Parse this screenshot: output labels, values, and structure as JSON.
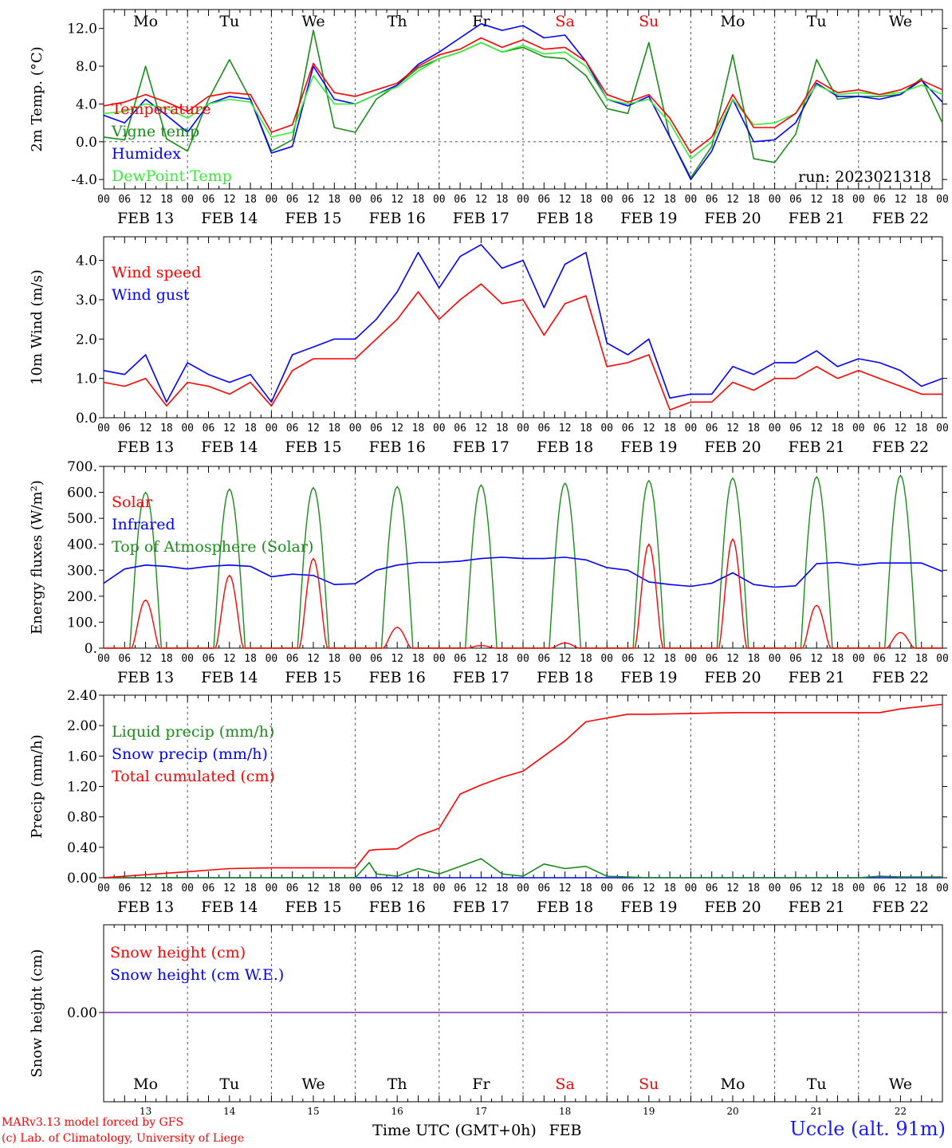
{
  "colors": {
    "red": "#ff0000",
    "green": "#1a8c1a",
    "blue": "#0000ff",
    "lightgreen": "#33ee33",
    "purple": "#7a2cb0",
    "black": "#000000"
  },
  "days": [
    "Mo",
    "Tu",
    "We",
    "Th",
    "Fr",
    "Sa",
    "Su",
    "Mo",
    "Tu",
    "We"
  ],
  "weekend_days": [
    5,
    6
  ],
  "date_labels": [
    "FEB 13",
    "FEB 14",
    "FEB 15",
    "FEB 16",
    "FEB 17",
    "FEB 18",
    "FEB 19",
    "FEB 20",
    "FEB 21",
    "FEB 22"
  ],
  "hour_ticks": [
    "00",
    "06",
    "12",
    "18"
  ],
  "last_tick": "00",
  "bottom_day_numbers": [
    "13",
    "14",
    "15",
    "16",
    "17",
    "18",
    "19",
    "20",
    "21",
    "22"
  ],
  "bottom_axis_label": "Time UTC (GMT+0h)",
  "bottom_month": "FEB",
  "footer": {
    "line1": "MARv3.13 model forced by GFS",
    "line2": "(c) Lab. of Climatology, University of Liege"
  },
  "station": "Uccle (alt. 91m)",
  "run_label": "run: 2023021318",
  "chart_data": [
    {
      "type": "line",
      "ylabel": "2m Temp. (°C)",
      "ylim": [
        -5.0,
        14.0
      ],
      "yticks": [
        -4,
        0,
        4,
        8,
        12
      ],
      "ytick_labels": [
        "-4.0",
        "0.0",
        "4.0",
        "8.0",
        "12.0"
      ],
      "zero_line": true,
      "x_hours": [
        0,
        6,
        12,
        18,
        24,
        30,
        36,
        42,
        48,
        54,
        60,
        66,
        72,
        78,
        84,
        90,
        96,
        102,
        108,
        114,
        120,
        126,
        132,
        138,
        144,
        150,
        156,
        162,
        168,
        174,
        180,
        186,
        192,
        198,
        204,
        210,
        216,
        222,
        228,
        234,
        240
      ],
      "series": [
        {
          "name": "Temperature",
          "color": "red",
          "values": [
            3.8,
            4.2,
            5.0,
            4.2,
            3.2,
            4.8,
            5.2,
            5.0,
            1.0,
            1.8,
            8.3,
            5.2,
            4.8,
            5.5,
            6.2,
            8.0,
            9.2,
            9.8,
            11.0,
            10.0,
            10.8,
            9.8,
            10.0,
            8.5,
            5.0,
            4.2,
            5.0,
            2.5,
            -1.2,
            0.5,
            5.0,
            1.5,
            1.5,
            3.0,
            6.5,
            5.2,
            5.5,
            5.0,
            5.5,
            6.5,
            5.5
          ]
        },
        {
          "name": "Vigne temp",
          "color": "green",
          "values": [
            0.5,
            0.2,
            8.0,
            0.3,
            -1.0,
            4.5,
            8.7,
            4.5,
            -1.0,
            0.2,
            11.8,
            1.5,
            1.0,
            4.5,
            6.0,
            7.8,
            8.8,
            9.5,
            10.5,
            9.5,
            10.0,
            9.0,
            8.8,
            7.0,
            3.5,
            3.0,
            10.5,
            0.5,
            -3.8,
            -0.5,
            9.2,
            -1.8,
            -2.2,
            0.8,
            8.7,
            4.5,
            4.8,
            4.8,
            5.0,
            6.7,
            2.0
          ]
        },
        {
          "name": "Humidex",
          "color": "blue",
          "values": [
            2.8,
            2.0,
            4.5,
            2.8,
            1.0,
            4.0,
            4.8,
            4.5,
            -1.2,
            -0.5,
            8.0,
            4.5,
            4.0,
            5.0,
            6.0,
            8.2,
            9.5,
            11.0,
            12.5,
            11.8,
            12.3,
            11.0,
            11.3,
            8.5,
            4.5,
            3.8,
            4.8,
            0.5,
            -4.0,
            -1.0,
            4.5,
            0.0,
            0.2,
            2.0,
            6.2,
            4.8,
            4.8,
            4.5,
            5.0,
            6.5,
            4.2
          ]
        },
        {
          "name": "DewPoint Temp",
          "color": "lightgreen",
          "values": [
            3.0,
            3.2,
            4.0,
            3.5,
            2.5,
            4.0,
            4.5,
            4.2,
            0.5,
            1.0,
            7.0,
            4.0,
            4.0,
            5.0,
            5.8,
            7.5,
            8.8,
            9.5,
            10.5,
            9.5,
            10.2,
            9.3,
            9.5,
            8.0,
            4.5,
            4.0,
            4.5,
            2.0,
            -1.8,
            0.0,
            4.5,
            1.8,
            2.0,
            3.0,
            6.0,
            5.0,
            5.2,
            5.0,
            5.2,
            6.0,
            5.0
          ]
        }
      ]
    },
    {
      "type": "line",
      "ylabel": "10m Wind (m/s)",
      "ylim": [
        0.0,
        4.6
      ],
      "yticks": [
        0,
        1,
        2,
        3,
        4
      ],
      "ytick_labels": [
        "0.0",
        "1.0",
        "2.0",
        "3.0",
        "4.0"
      ],
      "x_hours": [
        0,
        6,
        12,
        18,
        24,
        30,
        36,
        42,
        48,
        54,
        60,
        66,
        72,
        78,
        84,
        90,
        96,
        102,
        108,
        114,
        120,
        126,
        132,
        138,
        144,
        150,
        156,
        162,
        168,
        174,
        180,
        186,
        192,
        198,
        204,
        210,
        216,
        222,
        228,
        234,
        240
      ],
      "series": [
        {
          "name": "Wind speed",
          "color": "red",
          "values": [
            0.9,
            0.8,
            1.0,
            0.3,
            0.9,
            0.8,
            0.6,
            0.9,
            0.3,
            1.2,
            1.5,
            1.5,
            1.5,
            2.0,
            2.5,
            3.2,
            2.5,
            3.0,
            3.4,
            2.9,
            3.0,
            2.1,
            2.9,
            3.1,
            1.3,
            1.4,
            1.6,
            0.2,
            0.4,
            0.4,
            0.9,
            0.7,
            1.0,
            1.0,
            1.3,
            1.0,
            1.2,
            1.0,
            0.8,
            0.6,
            0.6
          ]
        },
        {
          "name": "Wind gust",
          "color": "blue",
          "values": [
            1.2,
            1.1,
            1.6,
            0.4,
            1.4,
            1.1,
            0.9,
            1.1,
            0.4,
            1.6,
            1.8,
            2.0,
            2.0,
            2.5,
            3.2,
            4.2,
            3.3,
            4.1,
            4.4,
            3.8,
            4.0,
            2.8,
            3.9,
            4.2,
            1.9,
            1.6,
            2.0,
            0.5,
            0.6,
            0.6,
            1.3,
            1.1,
            1.4,
            1.4,
            1.7,
            1.3,
            1.5,
            1.4,
            1.2,
            0.8,
            1.0
          ]
        }
      ]
    },
    {
      "type": "line",
      "ylabel": "Energy fluxes (W/m²)",
      "ylim": [
        0,
        700
      ],
      "yticks": [
        0,
        100,
        200,
        300,
        400,
        500,
        600,
        700
      ],
      "ytick_labels": [
        "0.",
        "100.",
        "200.",
        "300.",
        "400.",
        "500.",
        "600.",
        "700."
      ],
      "toa_peaks": [
        600,
        612,
        618,
        622,
        628,
        635,
        645,
        655,
        660,
        665
      ],
      "solar_peaks": [
        185,
        280,
        345,
        80,
        10,
        20,
        400,
        420,
        165,
        60
      ],
      "series": [
        {
          "name": "Solar",
          "color": "red"
        },
        {
          "name": "Infrared",
          "color": "blue",
          "x_hours": [
            0,
            6,
            12,
            18,
            24,
            30,
            36,
            42,
            48,
            54,
            60,
            66,
            72,
            78,
            84,
            90,
            96,
            102,
            108,
            114,
            120,
            126,
            132,
            138,
            144,
            150,
            156,
            162,
            168,
            174,
            180,
            186,
            192,
            198,
            204,
            210,
            216,
            222,
            228,
            234,
            240
          ],
          "values": [
            250,
            305,
            320,
            315,
            305,
            315,
            320,
            315,
            275,
            285,
            280,
            245,
            248,
            300,
            320,
            330,
            330,
            335,
            345,
            350,
            345,
            345,
            350,
            340,
            310,
            300,
            255,
            245,
            238,
            250,
            290,
            245,
            235,
            240,
            325,
            330,
            320,
            328,
            328,
            328,
            295
          ]
        },
        {
          "name": "Top of Atmosphere (Solar)",
          "color": "green"
        }
      ]
    },
    {
      "type": "line",
      "ylabel": "Precip (mm/h)",
      "ylim": [
        0,
        2.4
      ],
      "yticks": [
        0,
        0.4,
        0.8,
        1.2,
        1.6,
        2.0,
        2.4
      ],
      "ytick_labels": [
        "0.00",
        "0.40",
        "0.80",
        "1.20",
        "1.60",
        "2.00",
        "2.40"
      ],
      "x_hours": [
        0,
        12,
        24,
        36,
        48,
        60,
        72,
        76,
        78,
        84,
        90,
        96,
        102,
        108,
        114,
        120,
        126,
        132,
        138,
        144,
        150,
        156,
        168,
        180,
        192,
        204,
        216,
        222,
        228,
        234,
        240
      ],
      "series": [
        {
          "name": "Liquid precip (mm/h)",
          "color": "green",
          "values": [
            0,
            0,
            0,
            0,
            0,
            0,
            0,
            0.2,
            0.05,
            0.02,
            0.12,
            0.05,
            0.15,
            0.25,
            0.05,
            0.02,
            0.18,
            0.12,
            0.15,
            0.02,
            0.01,
            0,
            0,
            0,
            0,
            0,
            0,
            0.02,
            0.01,
            0.01,
            0.01
          ]
        },
        {
          "name": "Snow precip (mm/h)",
          "color": "blue",
          "values": [
            0,
            0,
            0,
            0,
            0,
            0,
            0,
            0,
            0,
            0,
            0,
            0,
            0,
            0,
            0,
            0,
            0,
            0,
            0,
            0,
            0,
            0,
            0,
            0,
            0,
            0,
            0,
            0,
            0,
            0,
            0
          ]
        },
        {
          "name": "Total cumulated (cm)",
          "color": "red",
          "values": [
            0,
            0.04,
            0.08,
            0.12,
            0.13,
            0.13,
            0.13,
            0.36,
            0.37,
            0.38,
            0.55,
            0.65,
            1.1,
            1.22,
            1.32,
            1.4,
            1.6,
            1.8,
            2.05,
            2.1,
            2.15,
            2.15,
            2.16,
            2.17,
            2.17,
            2.17,
            2.17,
            2.17,
            2.22,
            2.25,
            2.28
          ]
        }
      ]
    },
    {
      "type": "line",
      "ylabel": "Snow height (cm)",
      "yticks": [
        0
      ],
      "ytick_labels": [
        "0.00"
      ],
      "series": [
        {
          "name": "Snow height (cm)",
          "color": "red",
          "values": [
            0,
            0
          ]
        },
        {
          "name": "Snow height (cm W.E.)",
          "color": "blue",
          "values": [
            0,
            0
          ]
        }
      ]
    }
  ]
}
